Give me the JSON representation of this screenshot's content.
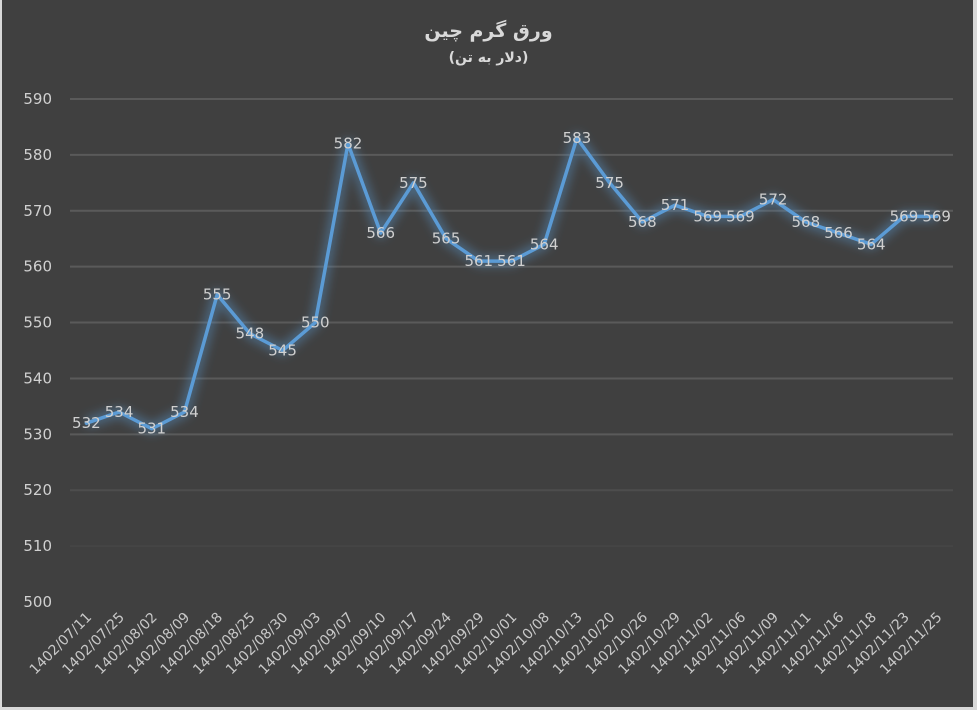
{
  "title": "ورق گرم چین",
  "subtitle": "(دلار به تن)",
  "colors": {
    "background": "#404040",
    "line": "#5b9bd5",
    "grid": "#5a5a5a",
    "text": "#d0d0d0"
  },
  "chart_data": {
    "type": "line",
    "title": "ورق گرم چین",
    "subtitle": "(دلار به تن)",
    "xlabel": "",
    "ylabel": "",
    "ylim": [
      500,
      590
    ],
    "yticks": [
      500,
      510,
      520,
      530,
      540,
      550,
      560,
      570,
      580,
      590
    ],
    "grid": true,
    "legend": "none",
    "categories": [
      "1402/07/11",
      "1402/07/25",
      "1402/08/02",
      "1402/08/09",
      "1402/08/18",
      "1402/08/25",
      "1402/08/30",
      "1402/09/03",
      "1402/09/07",
      "1402/09/10",
      "1402/09/17",
      "1402/09/24",
      "1402/09/29",
      "1402/10/01",
      "1402/10/08",
      "1402/10/13",
      "1402/10/20",
      "1402/10/26",
      "1402/10/29",
      "1402/11/02",
      "1402/11/06",
      "1402/11/09",
      "1402/11/11",
      "1402/11/16",
      "1402/11/18",
      "1402/11/23",
      "1402/11/25"
    ],
    "series": [
      {
        "name": "ورق گرم چین",
        "values": [
          532,
          534,
          531,
          534,
          555,
          548,
          545,
          550,
          582,
          566,
          575,
          565,
          561,
          561,
          564,
          583,
          575,
          568,
          571,
          569,
          569,
          572,
          568,
          566,
          564,
          569,
          569
        ]
      }
    ]
  }
}
